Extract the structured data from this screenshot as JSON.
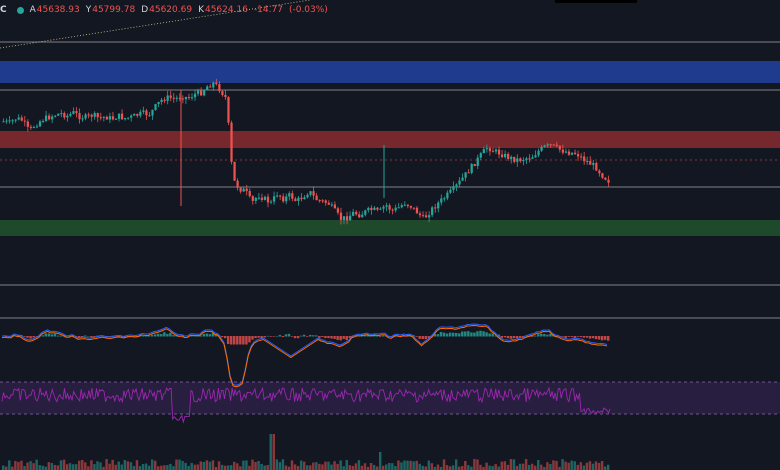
{
  "legend": {
    "symbol_fragment": "C",
    "open_label": "A",
    "open": "45638.93",
    "high_label": "Y",
    "high": "45799.78",
    "low_label": "D",
    "low": "45620.69",
    "close_label": "K",
    "close": "45624.16",
    "change": "-14.77",
    "change_pct": "(-0.03%)"
  },
  "colors": {
    "background": "#131722",
    "up_candle": "#26a69a",
    "down_candle": "#ef5350",
    "supply_zone": "#2142a0",
    "resistance_zone": "#8a2c2f",
    "demand_zone": "#1f4d2c",
    "rsi_band": "#2a1f44",
    "rsi_line": "#9c27b0",
    "macd_line": "#2962ff",
    "signal_line": "#ff6d00"
  },
  "chart_data": {
    "type": "candlestick",
    "series_close": [
      0.42,
      0.4,
      0.46,
      0.43,
      0.3,
      0.38,
      0.44,
      0.47,
      0.5,
      0.52,
      0.49,
      0.53,
      0.48,
      0.47,
      0.5,
      0.46,
      0.48,
      0.45,
      0.49,
      0.46,
      0.47,
      0.5,
      0.52,
      0.51,
      0.62,
      0.7,
      0.72,
      0.7,
      0.74,
      0.71,
      0.76,
      0.78,
      0.86,
      0.9,
      0.82,
      0.7,
      -0.3,
      -0.42,
      -0.45,
      -0.6,
      -0.5,
      -0.55,
      -0.6,
      -0.48,
      -0.55,
      -0.5,
      -0.58,
      -0.52,
      -0.45,
      -0.55,
      -0.58,
      -0.6,
      -0.7,
      -0.8,
      -0.78,
      -0.72,
      -0.75,
      -0.7,
      -0.68,
      -0.72,
      -0.62,
      -0.7,
      -0.66,
      -0.6,
      -0.64,
      -0.72,
      -0.8,
      -0.7,
      -0.62,
      -0.55,
      -0.48,
      -0.4,
      -0.3,
      -0.2,
      -0.1,
      0.0,
      0.1,
      0.05,
      0.02,
      -0.02,
      -0.05,
      -0.06,
      -0.04,
      -0.02,
      0.05,
      0.1,
      0.12,
      0.08,
      0.05,
      0.03,
      0.02,
      -0.05,
      -0.1,
      -0.15,
      -0.25,
      -0.32
    ],
    "horizontal_levels": 6,
    "zones": [
      "supply",
      "resistance",
      "demand"
    ],
    "indicators": [
      "MACD",
      "RSI",
      "Volume"
    ]
  }
}
